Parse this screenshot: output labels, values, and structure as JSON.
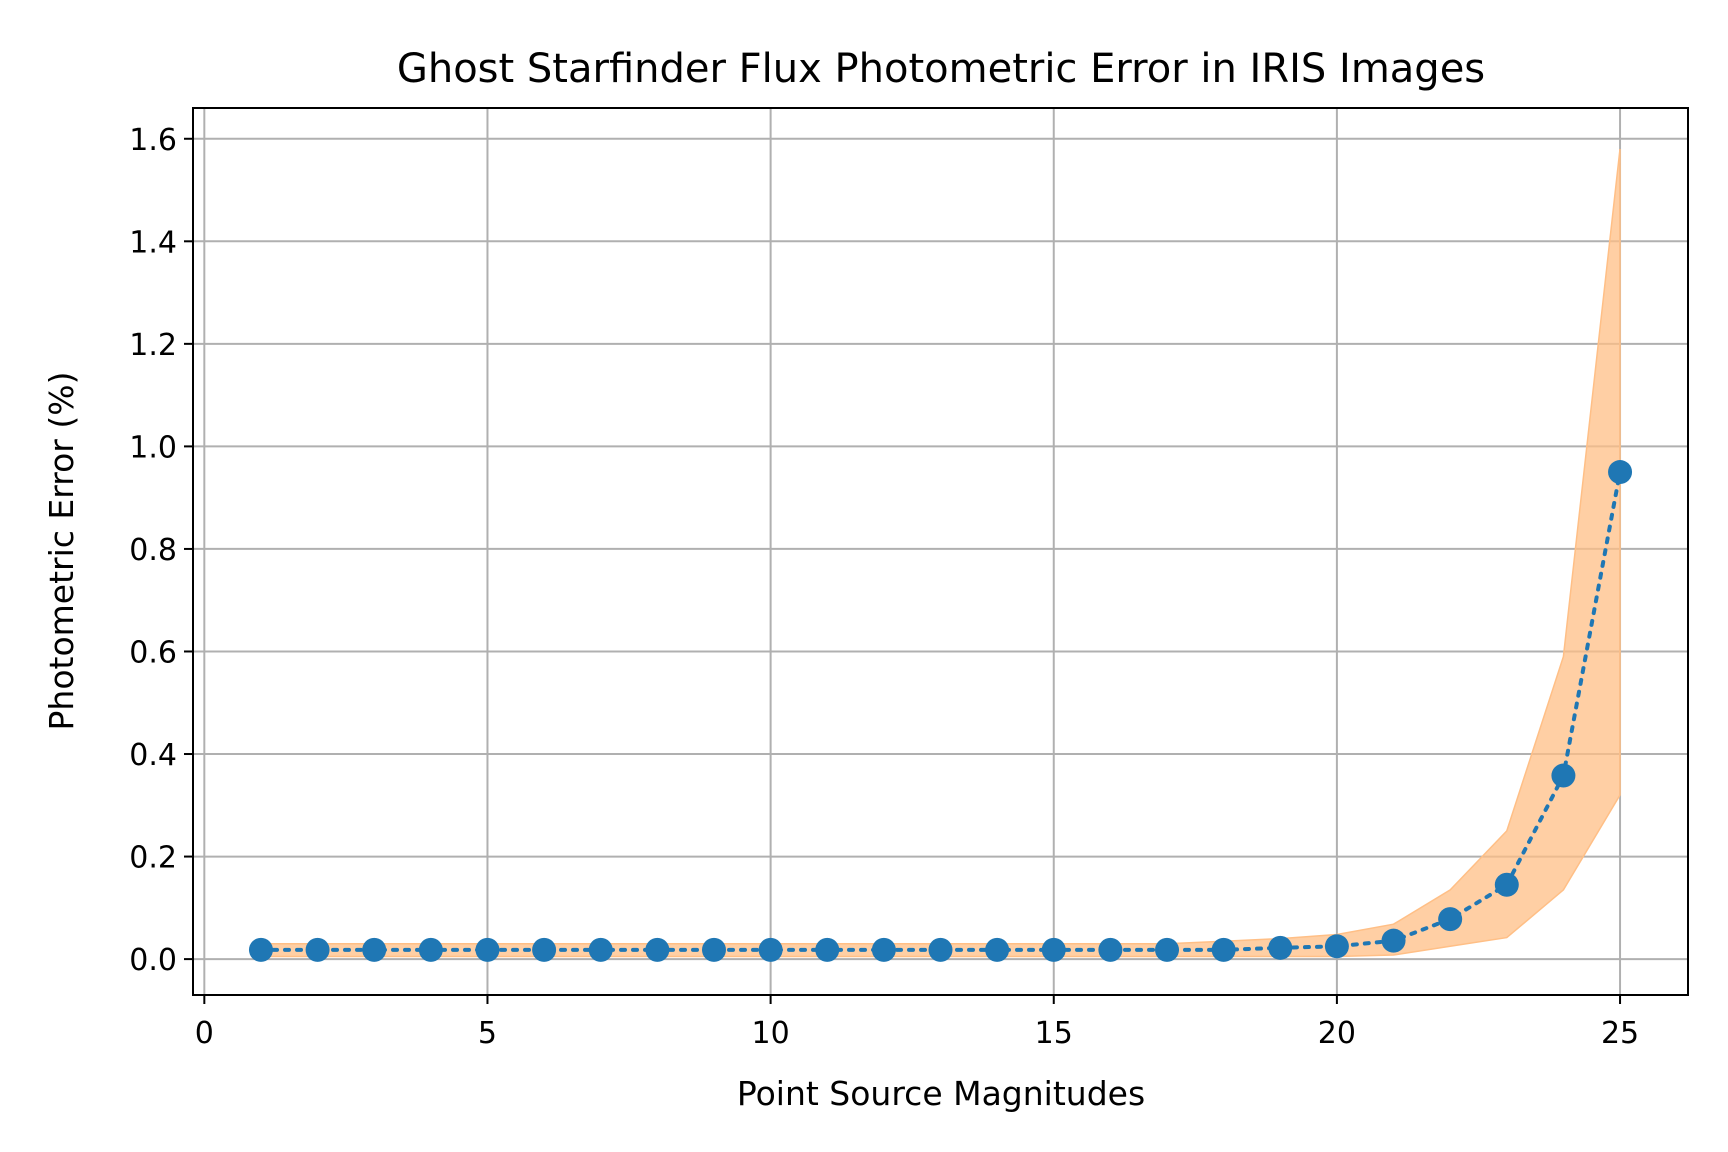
{
  "chart_data": {
    "type": "line",
    "title": "Ghost Starfinder Flux Photometric Error in IRIS Images",
    "xlabel": "Point Source Magnitudes",
    "ylabel": "Photometric Error (%)",
    "xlim": [
      -0.2,
      26.2
    ],
    "ylim": [
      -0.07,
      1.66
    ],
    "xticks": [
      0,
      5,
      10,
      15,
      20,
      25
    ],
    "xtick_labels": [
      "0",
      "5",
      "10",
      "15",
      "20",
      "25"
    ],
    "yticks": [
      0.0,
      0.2,
      0.4,
      0.6,
      0.8,
      1.0,
      1.2,
      1.4,
      1.6
    ],
    "ytick_labels": [
      "0.0",
      "0.2",
      "0.4",
      "0.6",
      "0.8",
      "1.0",
      "1.2",
      "1.4",
      "1.6"
    ],
    "grid": true,
    "series": [
      {
        "x": [
          1,
          2,
          3,
          4,
          5,
          6,
          7,
          8,
          9,
          10,
          11,
          12,
          13,
          14,
          15,
          16,
          17,
          18,
          19,
          20,
          21,
          22,
          23,
          24,
          25
        ],
        "y": [
          0.018,
          0.018,
          0.018,
          0.018,
          0.018,
          0.018,
          0.018,
          0.018,
          0.018,
          0.018,
          0.018,
          0.018,
          0.018,
          0.018,
          0.018,
          0.018,
          0.018,
          0.018,
          0.022,
          0.025,
          0.036,
          0.078,
          0.145,
          0.358,
          0.95
        ],
        "lower": [
          0.005,
          0.005,
          0.005,
          0.005,
          0.005,
          0.005,
          0.005,
          0.005,
          0.005,
          0.005,
          0.005,
          0.005,
          0.005,
          0.005,
          0.005,
          0.005,
          0.005,
          0.005,
          0.005,
          0.005,
          0.008,
          0.025,
          0.042,
          0.135,
          0.32
        ],
        "upper": [
          0.03,
          0.03,
          0.03,
          0.03,
          0.03,
          0.03,
          0.03,
          0.03,
          0.03,
          0.03,
          0.03,
          0.03,
          0.03,
          0.03,
          0.03,
          0.03,
          0.03,
          0.035,
          0.04,
          0.048,
          0.068,
          0.135,
          0.25,
          0.59,
          1.58
        ]
      }
    ],
    "colors": {
      "line": "#1f77b4",
      "band": "#ffbf86",
      "grid": "#b0b0b0",
      "axes": "#000000"
    }
  }
}
